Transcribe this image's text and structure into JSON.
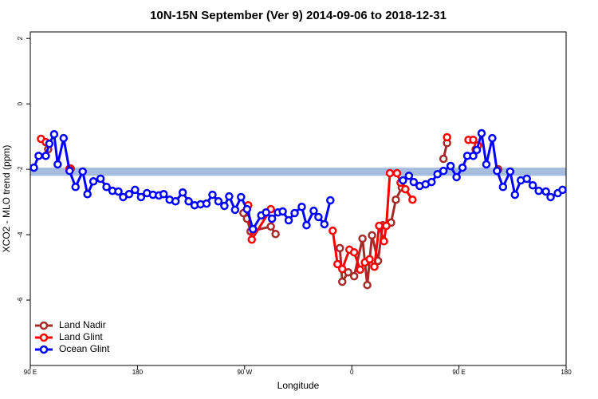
{
  "chart_data": {
    "type": "line",
    "title": "10N-15N September (Ver 9)   2014-09-06 to 2018-12-31",
    "xlabel": "Longitude",
    "ylabel": "XCO2 - MLO trend (ppm)",
    "xlim": [
      90,
      540
    ],
    "ylim": [
      -8,
      2.2
    ],
    "xticks": [
      {
        "value": 90,
        "label": "90 E"
      },
      {
        "value": 180,
        "label": "180"
      },
      {
        "value": 270,
        "label": "90 W"
      },
      {
        "value": 360,
        "label": "0"
      },
      {
        "value": 450,
        "label": "90 E"
      },
      {
        "value": 540,
        "label": "180"
      }
    ],
    "yticks": [
      -6,
      -4,
      -2,
      0,
      2
    ],
    "reference_band": {
      "range": [
        -2.2,
        -1.95
      ],
      "color": "#a7bde0"
    },
    "legend": "bottom-left",
    "series": [
      {
        "name": "Land Nadir",
        "color": "#a52a2a",
        "x": [
          105,
          null,
          124,
          null,
          269,
          272,
          275,
          292,
          296,
          null,
          350,
          352,
          357,
          362,
          369,
          373,
          377,
          382,
          386,
          393,
          397,
          402,
          null,
          437,
          440,
          null,
          464,
          null,
          483
        ],
        "values": [
          -1.39,
          null,
          -1.98,
          null,
          -3.34,
          -3.51,
          -3.9,
          -3.75,
          -3.98,
          null,
          -4.41,
          -5.44,
          -5.15,
          -5.27,
          -4.12,
          -5.54,
          -4.02,
          -4.8,
          -3.71,
          -3.63,
          -2.93,
          -2.56,
          null,
          -1.68,
          -1.2,
          null,
          -1.39,
          null,
          -2.0
        ]
      },
      {
        "name": "Land Glint",
        "color": "#ff0000",
        "x": [
          99,
          103,
          null,
          123,
          null,
          273,
          276,
          292,
          null,
          344,
          348,
          352,
          358,
          362,
          367,
          371,
          375,
          379,
          383,
          387,
          389,
          392,
          398,
          401,
          405,
          411,
          null,
          440,
          null,
          458,
          462,
          466
        ],
        "values": [
          -1.07,
          -1.17,
          null,
          -1.98,
          null,
          -3.1,
          -4.15,
          -3.22,
          null,
          -3.88,
          -4.9,
          -5.05,
          -4.46,
          -4.54,
          -5.07,
          -4.85,
          -4.75,
          -4.98,
          -3.73,
          -4.2,
          -3.73,
          -2.12,
          -2.12,
          -2.41,
          -2.61,
          -2.93,
          null,
          -1.02,
          null,
          -1.1,
          -1.1,
          -1.27
        ]
      },
      {
        "name": "Ocean Glint",
        "color": "#0000ff",
        "x": [
          93,
          97,
          103,
          106,
          110,
          113,
          118,
          123,
          128,
          134,
          138,
          143,
          149,
          154,
          159,
          164,
          168,
          173,
          178,
          183,
          188,
          193,
          198,
          202,
          207,
          212,
          218,
          223,
          228,
          233,
          238,
          243,
          248,
          253,
          257,
          262,
          267,
          272,
          277,
          284,
          288,
          293,
          298,
          302,
          307,
          312,
          318,
          322,
          328,
          332,
          337,
          342,
          null,
          403,
          408,
          412,
          417,
          422,
          427,
          432,
          437,
          443,
          448,
          453,
          457,
          462,
          465,
          469,
          473,
          478,
          482,
          487,
          493,
          497,
          502,
          507,
          512,
          517,
          523,
          527,
          533,
          537
        ],
        "values": [
          -1.95,
          -1.59,
          -1.59,
          -1.22,
          -0.93,
          -1.85,
          -1.05,
          -2.05,
          -2.54,
          -2.07,
          -2.76,
          -2.37,
          -2.29,
          -2.54,
          -2.66,
          -2.68,
          -2.85,
          -2.76,
          -2.63,
          -2.85,
          -2.73,
          -2.78,
          -2.8,
          -2.76,
          -2.93,
          -2.98,
          -2.71,
          -2.98,
          -3.1,
          -3.07,
          -3.05,
          -2.78,
          -2.98,
          -3.12,
          -2.83,
          -3.24,
          -2.85,
          -3.22,
          -3.83,
          -3.41,
          -3.32,
          -3.51,
          -3.32,
          -3.29,
          -3.56,
          -3.34,
          -3.15,
          -3.71,
          -3.27,
          -3.46,
          -3.68,
          -2.95,
          null,
          -2.34,
          -2.2,
          -2.39,
          -2.51,
          -2.46,
          -2.39,
          -2.15,
          -2.05,
          -1.9,
          -2.24,
          -1.95,
          -1.59,
          -1.59,
          -1.41,
          -0.9,
          -1.85,
          -1.05,
          -2.05,
          -2.54,
          -2.07,
          -2.78,
          -2.34,
          -2.29,
          -2.49,
          -2.66,
          -2.68,
          -2.85,
          -2.73,
          -2.63
        ]
      }
    ]
  }
}
